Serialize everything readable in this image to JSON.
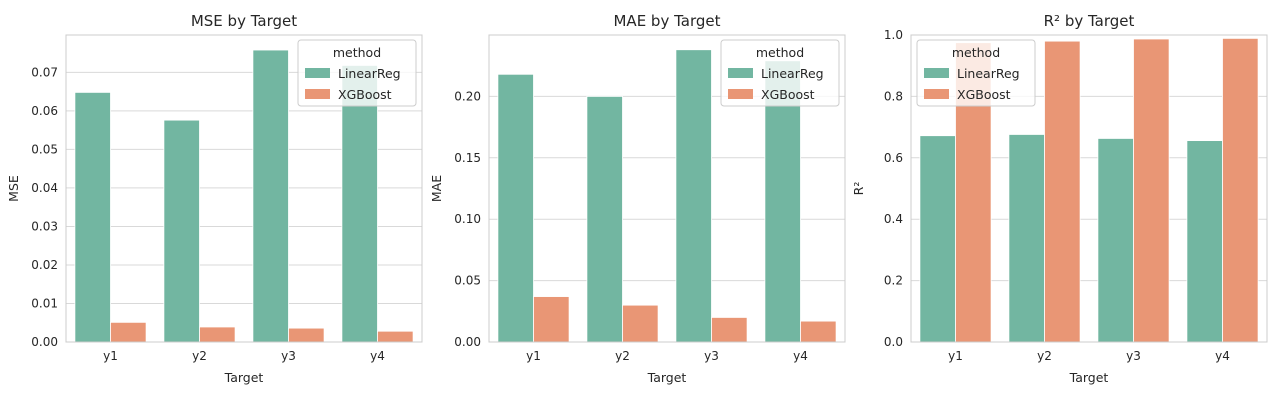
{
  "chart_data": [
    {
      "type": "bar",
      "title": "MSE by Target",
      "xlabel": "Target",
      "ylabel": "MSE",
      "categories": [
        "y1",
        "y2",
        "y3",
        "y4"
      ],
      "series": [
        {
          "name": "LinearReg",
          "values": [
            0.0648,
            0.0576,
            0.0758,
            0.0718
          ]
        },
        {
          "name": "XGBoost",
          "values": [
            0.0051,
            0.0039,
            0.0036,
            0.0028
          ]
        }
      ],
      "ylim": [
        0,
        0.0797
      ],
      "yticks": [
        0.0,
        0.01,
        0.02,
        0.03,
        0.04,
        0.05,
        0.06,
        0.07
      ],
      "ytick_labels": [
        "0.00",
        "0.01",
        "0.02",
        "0.03",
        "0.04",
        "0.05",
        "0.06",
        "0.07"
      ],
      "grid": true,
      "legend": {
        "title": "method",
        "placement": "top-right"
      }
    },
    {
      "type": "bar",
      "title": "MAE by Target",
      "xlabel": "Target",
      "ylabel": "MAE",
      "categories": [
        "y1",
        "y2",
        "y3",
        "y4"
      ],
      "series": [
        {
          "name": "LinearReg",
          "values": [
            0.218,
            0.2,
            0.238,
            0.229
          ]
        },
        {
          "name": "XGBoost",
          "values": [
            0.037,
            0.03,
            0.02,
            0.017
          ]
        }
      ],
      "ylim": [
        0,
        0.25
      ],
      "yticks": [
        0.0,
        0.05,
        0.1,
        0.15,
        0.2
      ],
      "ytick_labels": [
        "0.00",
        "0.05",
        "0.10",
        "0.15",
        "0.20"
      ],
      "grid": true,
      "legend": {
        "title": "method",
        "placement": "top-right"
      }
    },
    {
      "type": "bar",
      "title": "R² by Target",
      "xlabel": "Target",
      "ylabel": "R²",
      "categories": [
        "y1",
        "y2",
        "y3",
        "y4"
      ],
      "series": [
        {
          "name": "LinearReg",
          "values": [
            0.672,
            0.676,
            0.663,
            0.656
          ]
        },
        {
          "name": "XGBoost",
          "values": [
            0.975,
            0.98,
            0.987,
            0.989
          ]
        }
      ],
      "ylim": [
        0,
        1.0
      ],
      "yticks": [
        0.0,
        0.2,
        0.4,
        0.6,
        0.8,
        1.0
      ],
      "ytick_labels": [
        "0.0",
        "0.2",
        "0.4",
        "0.6",
        "0.8",
        "1.0"
      ],
      "grid": true,
      "legend": {
        "title": "method",
        "placement": "top-left"
      }
    }
  ],
  "colors": {
    "LinearReg": "#72b6a1",
    "XGBoost": "#e99675"
  }
}
